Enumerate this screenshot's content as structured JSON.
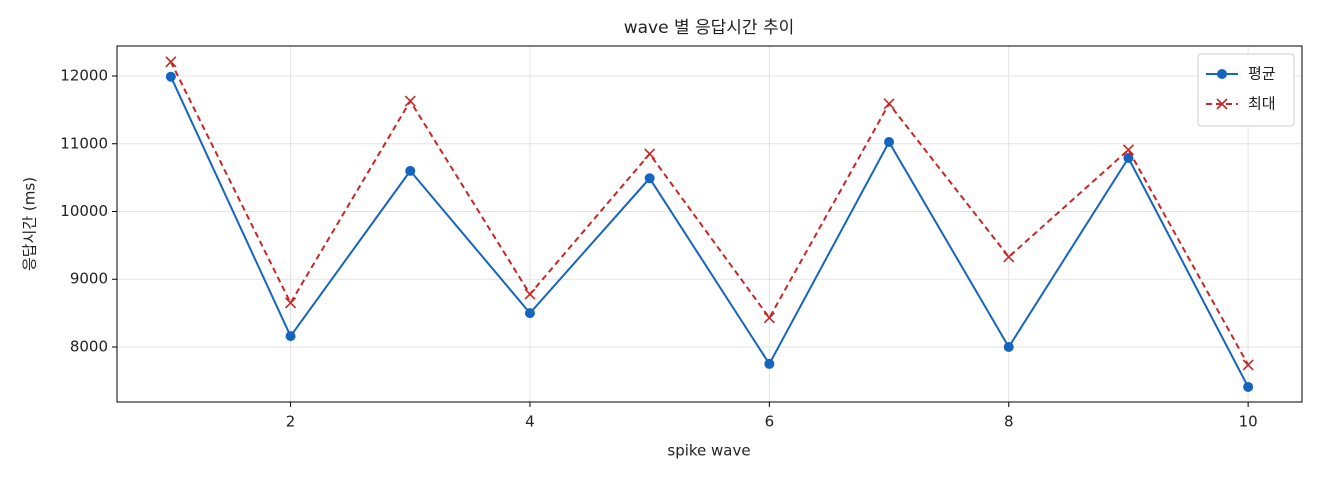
{
  "chart_data": {
    "type": "line",
    "title": "wave 별 응답시간 추이",
    "x_label": "spike wave",
    "y_label": "응답시간 (ms)",
    "x": [
      1,
      2,
      3,
      4,
      5,
      6,
      7,
      8,
      9,
      10
    ],
    "series": [
      {
        "name": "평균",
        "color": "#1565c0",
        "marker": "circle",
        "dash": false,
        "values": [
          11990,
          8160,
          10600,
          8500,
          10490,
          7750,
          11025,
          8000,
          10790,
          7410
        ]
      },
      {
        "name": "최대",
        "color": "#c62828",
        "marker": "x",
        "dash": true,
        "values": [
          12210,
          8650,
          11630,
          8780,
          10850,
          8430,
          11590,
          9330,
          10910,
          7735
        ]
      }
    ],
    "xlim": [
      0.55,
      10.45
    ],
    "ylim": [
      7188,
      12443
    ],
    "xticks": [
      2,
      4,
      6,
      8,
      10
    ],
    "yticks": [
      8000,
      9000,
      10000,
      11000,
      12000
    ],
    "grid": true,
    "legend": "upper right"
  }
}
